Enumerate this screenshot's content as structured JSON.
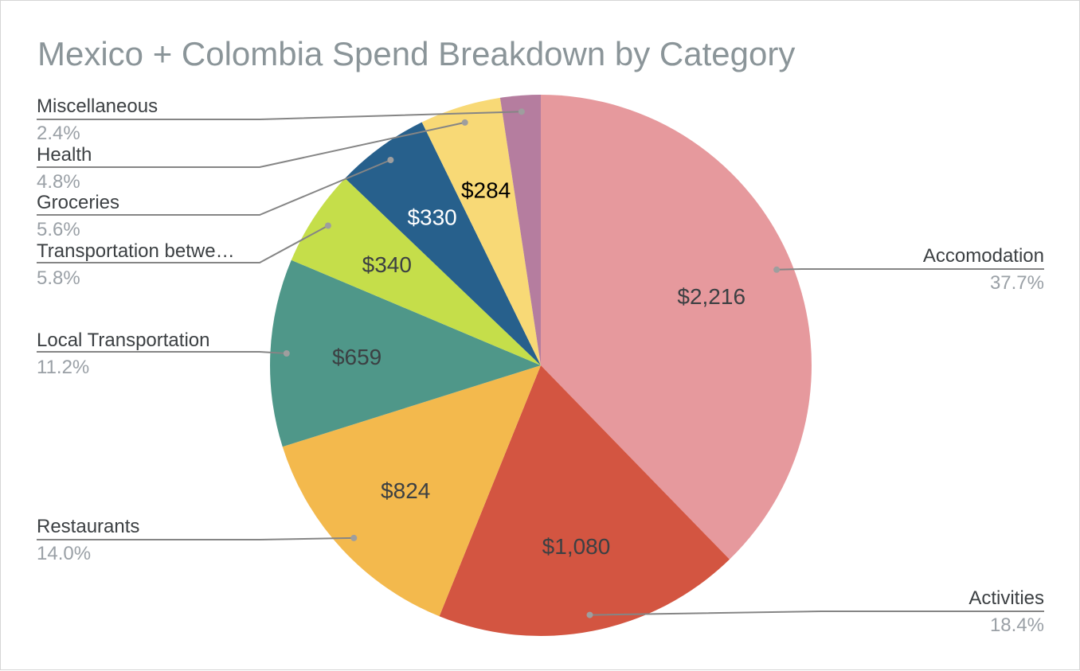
{
  "chart_data": {
    "type": "pie",
    "title": "Mexico + Colombia Spend Breakdown by Category",
    "slices": [
      {
        "label": "Accomodation",
        "value": 2216,
        "value_label": "$2,216",
        "percent_label": "37.7%",
        "color": "#e6999d",
        "value_text_color": "#3c4043"
      },
      {
        "label": "Activities",
        "value": 1080,
        "value_label": "$1,080",
        "percent_label": "18.4%",
        "color": "#d35541",
        "value_text_color": "#3c4043"
      },
      {
        "label": "Restaurants",
        "value": 824,
        "value_label": "$824",
        "percent_label": "14.0%",
        "color": "#f3b94d",
        "value_text_color": "#3c4043"
      },
      {
        "label": "Local Transportation",
        "value": 659,
        "value_label": "$659",
        "percent_label": "11.2%",
        "color": "#4f9789",
        "value_text_color": "#3c4043"
      },
      {
        "label": "Transportation betwe…",
        "value": 340,
        "value_label": "$340",
        "percent_label": "5.8%",
        "color": "#c5de4a",
        "value_text_color": "#3c4043"
      },
      {
        "label": "Groceries",
        "value": 330,
        "value_label": "$330",
        "percent_label": "5.6%",
        "color": "#27608c",
        "value_text_color": "#ffffff"
      },
      {
        "label": "Health",
        "value": 284,
        "value_label": "$284",
        "percent_label": "4.8%",
        "color": "#f8d976",
        "value_text_color": "#000000"
      },
      {
        "label": "Miscellaneous",
        "value": 141,
        "value_label": "",
        "percent_label": "2.4%",
        "color": "#b57d9f",
        "value_text_color": "#3c4043"
      }
    ],
    "start_angle": "12 o'clock",
    "direction": "clockwise",
    "legend": "none",
    "leader_label_color": "#3c4043",
    "leader_percent_color": "#9aa0a6",
    "leader_line_color": "#858585"
  }
}
